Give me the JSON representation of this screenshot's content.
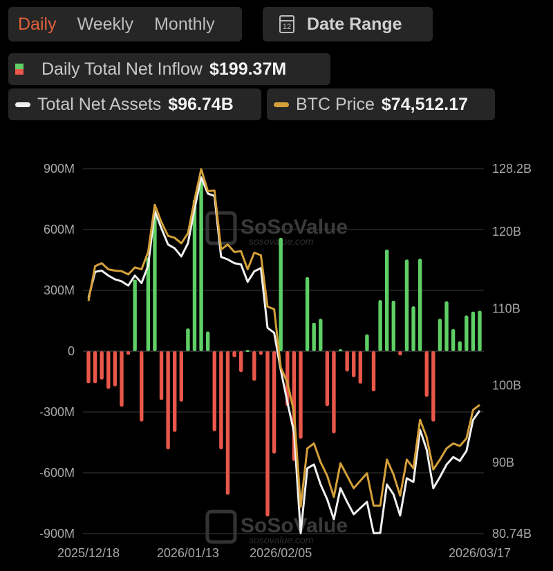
{
  "tabs": [
    {
      "label": "Daily",
      "active": true
    },
    {
      "label": "Weekly",
      "active": false
    },
    {
      "label": "Monthly",
      "active": false
    }
  ],
  "date_range": {
    "label": "Date Range",
    "icon": "calendar-icon",
    "icon_text": "12"
  },
  "legend": {
    "inflow": {
      "label": "Daily Total Net Inflow",
      "value": "$199.37M"
    },
    "assets": {
      "label": "Total Net Assets",
      "value": "$96.74B"
    },
    "btc": {
      "label": "BTC Price",
      "value": "$74,512.17"
    }
  },
  "colors": {
    "accent": "#e0613a",
    "inflow_pos": "#5fcf65",
    "inflow_neg": "#e8574a",
    "assets": "#f0f0f0",
    "btc": "#d4a03a",
    "grid": "#3a3a3a"
  },
  "watermark": {
    "brand": "SoSoValue",
    "url": "sosovalue.com"
  },
  "chart_data": {
    "type": "bar",
    "title": "",
    "x_tick_labels": [
      {
        "index": 0,
        "label": "2025/12/18"
      },
      {
        "index": 15,
        "label": "2026/01/13"
      },
      {
        "index": 29,
        "label": "2026/02/05"
      },
      {
        "index": 59,
        "label": "2026/03/17"
      }
    ],
    "left_axis": {
      "unit": "USD",
      "ylim": [
        -900,
        900
      ],
      "ticks": [
        {
          "v": 900,
          "label": "900M"
        },
        {
          "v": 600,
          "label": "600M"
        },
        {
          "v": 300,
          "label": "300M"
        },
        {
          "v": 0,
          "label": "0"
        },
        {
          "v": -300,
          "label": "-300M"
        },
        {
          "v": -600,
          "label": "-600M"
        },
        {
          "v": -900,
          "label": "-900M"
        }
      ]
    },
    "right_axis": {
      "unit": "USD B",
      "ylim": [
        80.74,
        128.2
      ],
      "ticks": [
        {
          "v": 128.2,
          "label": "128.2B"
        },
        {
          "v": 120,
          "label": "120B"
        },
        {
          "v": 110,
          "label": "110B"
        },
        {
          "v": 100,
          "label": "100B"
        },
        {
          "v": 90,
          "label": "90B"
        },
        {
          "v": 80.74,
          "label": "80.74B"
        }
      ]
    },
    "price_axis_range": [
      61710,
      97985
    ],
    "grid": true,
    "series": [
      {
        "name": "Daily Total Net Inflow (M)",
        "type": "bar",
        "values": [
          -158,
          -158,
          -140,
          -186,
          -174,
          -274,
          -18,
          353,
          -347,
          462,
          687,
          -241,
          -484,
          -398,
          -249,
          112,
          748,
          845,
          97,
          -395,
          -484,
          -708,
          -30,
          -103,
          6,
          -146,
          -18,
          -815,
          -505,
          559,
          -270,
          -541,
          -432,
          365,
          140,
          160,
          -271,
          -405,
          10,
          -100,
          -128,
          -160,
          83,
          -198,
          252,
          501,
          249,
          -21,
          452,
          221,
          456,
          -225,
          -347,
          160,
          246,
          109,
          49,
          176,
          195,
          199.37
        ]
      },
      {
        "name": "Total Net Assets (B)",
        "type": "line",
        "values": [
          111.39,
          114.78,
          114.94,
          114.3,
          113.81,
          113.55,
          113.0,
          114.3,
          113.33,
          115.59,
          122.7,
          120.44,
          118.34,
          117.85,
          116.79,
          118.5,
          123.03,
          127.07,
          124.97,
          124.64,
          116.72,
          116.4,
          115.91,
          115.75,
          113.49,
          114.85,
          115.27,
          107.51,
          106.86,
          102.01,
          97.81,
          93.93,
          80.8,
          89.24,
          89.73,
          87.14,
          85.2,
          82.61,
          86.65,
          84.88,
          83.26,
          84.07,
          84.88,
          80.8,
          80.83,
          87.14,
          85.85,
          83.1,
          87.95,
          87.46,
          94.25,
          91.67,
          86.65,
          88.11,
          89.73,
          90.7,
          90.21,
          91.5,
          95.55,
          96.74
        ]
      },
      {
        "name": "BTC Price",
        "type": "line",
        "values": [
          84835,
          88300,
          88590,
          87980,
          87850,
          87800,
          87480,
          88170,
          87980,
          89705,
          94400,
          92670,
          91310,
          91110,
          90570,
          91555,
          94895,
          97937,
          95760,
          95805,
          89950,
          90445,
          89705,
          89780,
          87980,
          89630,
          89385,
          84270,
          84020,
          78220,
          76735,
          73770,
          64380,
          70185,
          70675,
          68825,
          67465,
          65365,
          68705,
          67465,
          66225,
          66970,
          67710,
          64500,
          64500,
          69070,
          67590,
          65485,
          69070,
          68205,
          73030,
          71295,
          68085,
          69070,
          70185,
          70675,
          70430,
          71170,
          74015,
          74512.17
        ]
      }
    ]
  }
}
